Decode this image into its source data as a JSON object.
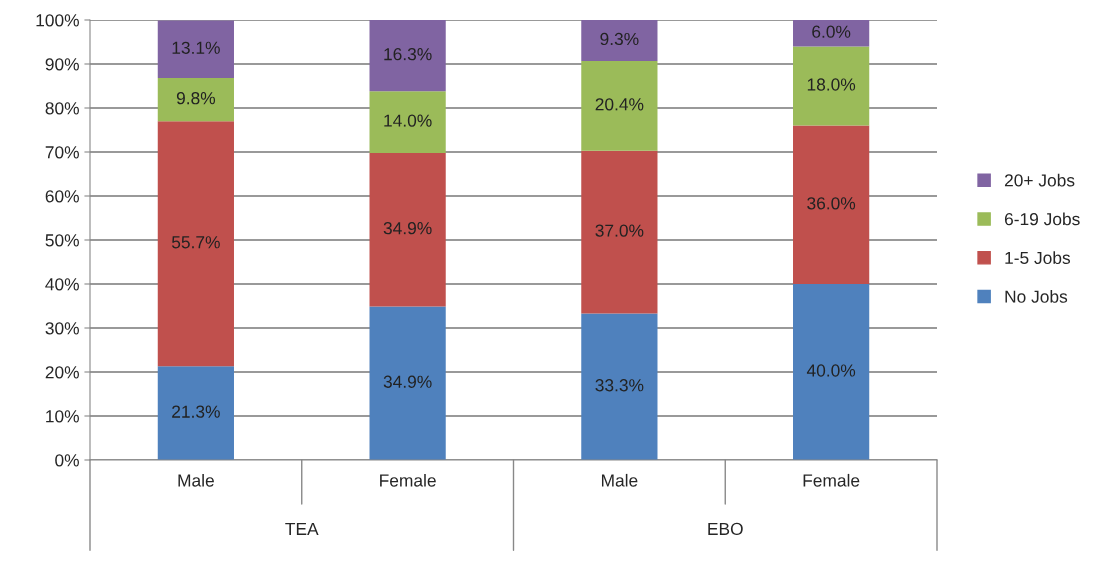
{
  "chart_data": {
    "type": "bar",
    "stacked": true,
    "categories": [
      "Male",
      "Female",
      "Male",
      "Female"
    ],
    "series": [
      {
        "name": "No Jobs",
        "color": "#4f81bd",
        "values": [
          21.3,
          34.9,
          33.3,
          40.0
        ],
        "value_labels": [
          "21.3%",
          "34.9%",
          "33.3%",
          "40.0%"
        ]
      },
      {
        "name": "1-5 Jobs",
        "color": "#c0504d",
        "values": [
          55.7,
          34.9,
          37.0,
          36.0
        ],
        "value_labels": [
          "55.7%",
          "34.9%",
          "37.0%",
          "36.0%"
        ]
      },
      {
        "name": "6-19 Jobs",
        "color": "#9bbb59",
        "values": [
          9.8,
          14.0,
          20.4,
          18.0
        ],
        "value_labels": [
          "9.8%",
          "14.0%",
          "20.4%",
          "18.0%"
        ]
      },
      {
        "name": "20+ Jobs",
        "color": "#8064a2",
        "values": [
          13.1,
          16.3,
          9.3,
          6.0
        ],
        "value_labels": [
          "13.1%",
          "16.3%",
          "9.3%",
          "6.0%"
        ]
      }
    ],
    "ylim": [
      0,
      100
    ],
    "yticks": [
      {
        "value": 0,
        "label": "0%"
      },
      {
        "value": 10,
        "label": "10%"
      },
      {
        "value": 20,
        "label": "20%"
      },
      {
        "value": 30,
        "label": "30%"
      },
      {
        "value": 40,
        "label": "40%"
      },
      {
        "value": 50,
        "label": "50%"
      },
      {
        "value": 60,
        "label": "60%"
      },
      {
        "value": 70,
        "label": "70%"
      },
      {
        "value": 80,
        "label": "80%"
      },
      {
        "value": 90,
        "label": "90%"
      },
      {
        "value": 100,
        "label": "100%"
      }
    ],
    "grid": "y",
    "legend": "right",
    "annotations": [
      "TEA",
      "EBO"
    ]
  }
}
